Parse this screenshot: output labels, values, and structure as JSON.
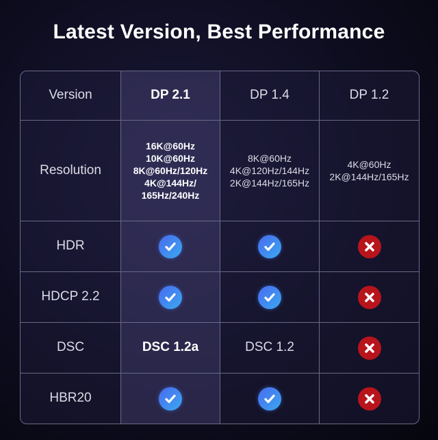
{
  "title": "Latest Version, Best Performance",
  "colors": {
    "check": "#4a8af0",
    "cross": "#b8141c"
  },
  "columns": [
    "Version",
    "DP 2.1",
    "DP 1.4",
    "DP 1.2"
  ],
  "rows": [
    {
      "label": "Resolution",
      "values": [
        [
          "16K@60Hz",
          "10K@60Hz",
          "8K@60Hz/120Hz",
          "4K@144Hz/",
          "165Hz/240Hz"
        ],
        [
          "8K@60Hz",
          "4K@120Hz/144Hz",
          "2K@144Hz/165Hz"
        ],
        [
          "4K@60Hz",
          "2K@144Hz/165Hz"
        ]
      ]
    },
    {
      "label": "HDR",
      "values": [
        "check-icon",
        "check-icon",
        "cross-icon"
      ]
    },
    {
      "label": "HDCP 2.2",
      "values": [
        "check-icon",
        "check-icon",
        "cross-icon"
      ]
    },
    {
      "label": "DSC",
      "values": [
        "DSC 1.2a",
        "DSC 1.2",
        "cross-icon"
      ]
    },
    {
      "label": "HBR20",
      "values": [
        "check-icon",
        "check-icon",
        "cross-icon"
      ]
    }
  ]
}
